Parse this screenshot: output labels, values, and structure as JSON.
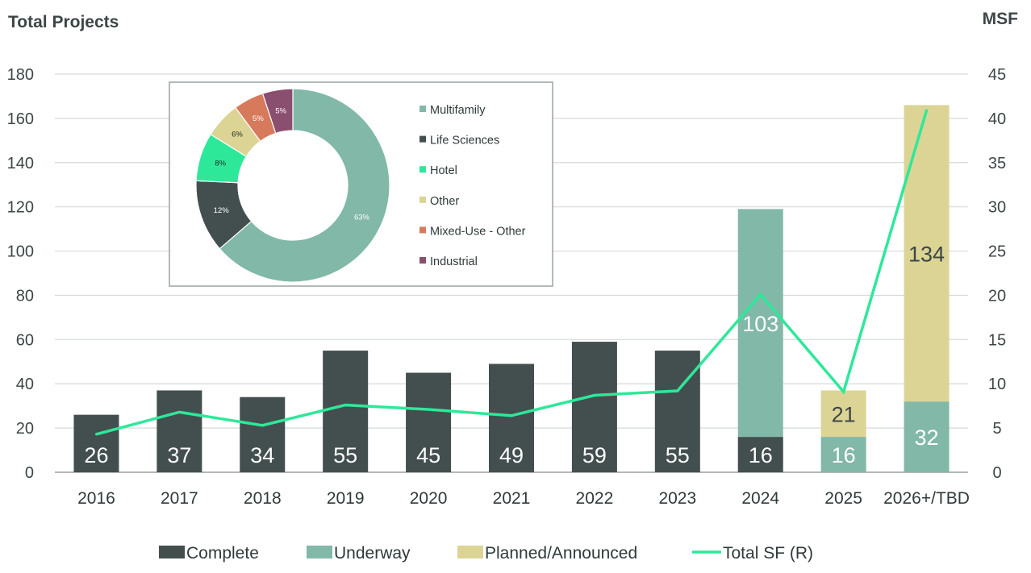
{
  "chart_data": [
    {
      "type": "bar",
      "stacked": true,
      "left_axis_title": "Total Projects",
      "right_axis_title": "MSF",
      "categories": [
        "2016",
        "2017",
        "2018",
        "2019",
        "2020",
        "2021",
        "2022",
        "2023",
        "2024",
        "2025",
        "2026+/TBD"
      ],
      "ylim": [
        0,
        180
      ],
      "yticks": [
        "0",
        "20",
        "40",
        "60",
        "80",
        "100",
        "120",
        "140",
        "160",
        "180"
      ],
      "y2lim": [
        0,
        45
      ],
      "y2ticks": [
        "0",
        "5",
        "10",
        "15",
        "20",
        "25",
        "30",
        "35",
        "40",
        "45"
      ],
      "grid": true,
      "legend_position": "bottom",
      "series": [
        {
          "name": "Complete",
          "color": "#434f4f",
          "label_color": "#ffffff",
          "values": [
            26,
            37,
            34,
            55,
            45,
            49,
            59,
            55,
            16,
            null,
            null
          ]
        },
        {
          "name": "Underway",
          "color": "#82b8a8",
          "label_color": "#ffffff",
          "values": [
            null,
            null,
            null,
            null,
            null,
            null,
            null,
            null,
            103,
            16,
            32
          ]
        },
        {
          "name": "Planned/Announced",
          "color": "#dcd494",
          "label_color": "#3c4646",
          "values": [
            null,
            null,
            null,
            null,
            null,
            null,
            null,
            null,
            null,
            21,
            134
          ]
        }
      ],
      "line_series": {
        "name": "Total SF (R)",
        "axis": "right",
        "color": "#2ee89a",
        "values": [
          4.3,
          6.8,
          5.3,
          7.6,
          7.1,
          6.4,
          8.7,
          9.2,
          20.1,
          9.1,
          40.9
        ]
      },
      "legend": [
        {
          "label": "Complete",
          "kind": "box",
          "color": "#434f4f"
        },
        {
          "label": "Underway",
          "kind": "box",
          "color": "#82b8a8"
        },
        {
          "label": "Planned/Announced",
          "kind": "box",
          "color": "#dcd494"
        },
        {
          "label": "Total SF (R)",
          "kind": "line",
          "color": "#2ee89a"
        }
      ]
    },
    {
      "type": "pie",
      "donut": true,
      "slices": [
        {
          "label": "Multifamily",
          "value": 63,
          "text": "63%",
          "color": "#82b8a8",
          "text_color": "#ffffff"
        },
        {
          "label": "Life Sciences",
          "value": 12,
          "text": "12%",
          "color": "#434f4f",
          "text_color": "#ffffff"
        },
        {
          "label": "Hotel",
          "value": 8,
          "text": "8%",
          "color": "#2ee89a",
          "text_color": "#1f2a2a"
        },
        {
          "label": "Other",
          "value": 6,
          "text": "6%",
          "color": "#dcd494",
          "text_color": "#1f2a2a"
        },
        {
          "label": "Mixed-Use - Other",
          "value": 5,
          "text": "5%",
          "color": "#d77a5b",
          "text_color": "#ffffff"
        },
        {
          "label": "Industrial",
          "value": 5,
          "text": "5%",
          "color": "#8a4f6e",
          "text_color": "#ffffff"
        }
      ]
    }
  ]
}
